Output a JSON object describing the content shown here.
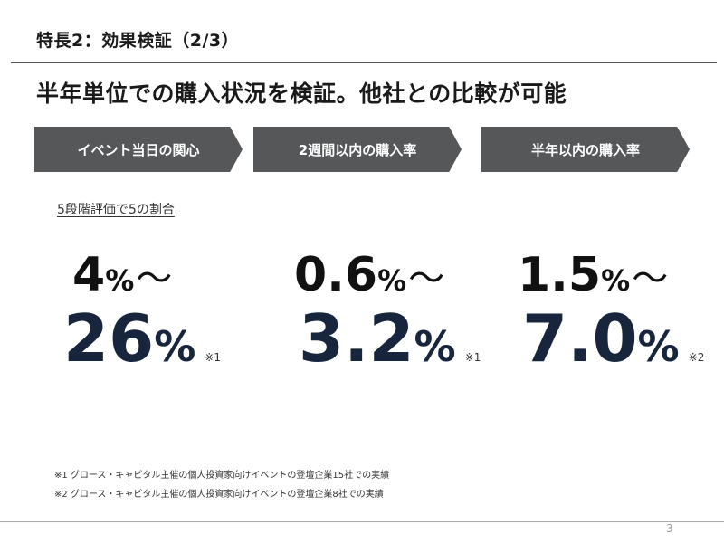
{
  "slide": {
    "section_title": "特長2：効果検証（2/3）",
    "headline": "半年単位での購入状況を検証。他社との比較が可能",
    "steps": [
      "イベント当日の関心",
      "2週間以内の購入率",
      "半年以内の購入率"
    ],
    "note_label": "5段階評価で5の割合",
    "stats": [
      {
        "from": "4",
        "to": "26",
        "unit": "%",
        "tilde": "～",
        "ref": "※1"
      },
      {
        "from": "0.6",
        "to": "3.2",
        "unit": "%",
        "tilde": "～",
        "ref": "※1"
      },
      {
        "from": "1.5",
        "to": "7.0",
        "unit": "%",
        "tilde": "～",
        "ref": "※2"
      }
    ],
    "footnotes": [
      "※1 グロース・キャピタル主催の個人投資家向けイベントの登壇企業15社での実績",
      "※2 グロース・キャピタル主催の個人投資家向けイベントの登壇企業8社での実績"
    ],
    "page_number": "3"
  }
}
